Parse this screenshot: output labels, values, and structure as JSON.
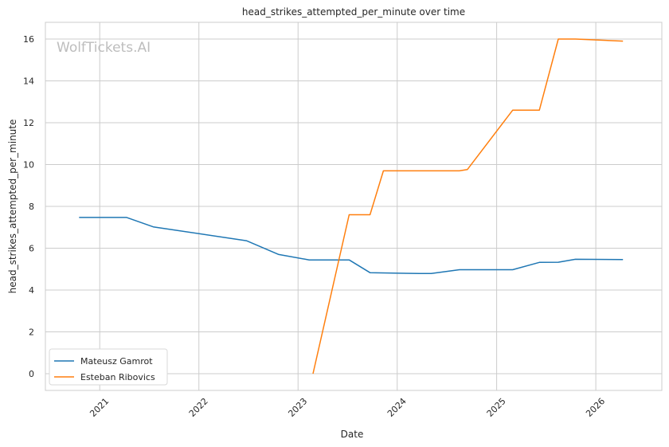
{
  "chart_data": {
    "type": "line",
    "title": "head_strikes_attempted_per_minute over time",
    "xlabel": "Date",
    "ylabel": "head_strikes_attempted_per_minute",
    "watermark": "WolfTickets.AI",
    "xlim": [
      "2020-06-15",
      "2026-09-01"
    ],
    "ylim": [
      -0.8,
      16.8
    ],
    "x_ticks": [
      "2021",
      "2022",
      "2023",
      "2024",
      "2025",
      "2026"
    ],
    "y_ticks": [
      0,
      2,
      4,
      6,
      8,
      10,
      12,
      14,
      16
    ],
    "grid": true,
    "legend_position": "lower-left",
    "series": [
      {
        "name": "Mateusz Gamrot",
        "color": "#1f77b4",
        "points": [
          [
            "2020-10-17",
            7.47
          ],
          [
            "2021-04-10",
            7.47
          ],
          [
            "2021-07-17",
            7.02
          ],
          [
            "2022-06-25",
            6.36
          ],
          [
            "2022-10-22",
            5.7
          ],
          [
            "2023-02-11",
            5.44
          ],
          [
            "2023-07-08",
            5.44
          ],
          [
            "2023-09-23",
            4.83
          ],
          [
            "2024-03-23",
            4.79
          ],
          [
            "2024-05-05",
            4.79
          ],
          [
            "2024-08-17",
            4.97
          ],
          [
            "2025-03-01",
            4.97
          ],
          [
            "2025-06-07",
            5.32
          ],
          [
            "2025-08-16",
            5.33
          ],
          [
            "2025-10-18",
            5.47
          ],
          [
            "2026-04-11",
            5.46
          ]
        ]
      },
      {
        "name": "Esteban Ribovics",
        "color": "#ff7f0e",
        "points": [
          [
            "2023-02-25",
            0.0
          ],
          [
            "2023-07-08",
            7.6
          ],
          [
            "2023-09-23",
            7.6
          ],
          [
            "2023-11-11",
            9.7
          ],
          [
            "2024-08-17",
            9.7
          ],
          [
            "2024-09-15",
            9.76
          ],
          [
            "2025-03-01",
            12.6
          ],
          [
            "2025-06-07",
            12.6
          ],
          [
            "2025-08-16",
            16.0
          ],
          [
            "2025-10-18",
            16.0
          ],
          [
            "2026-04-11",
            15.9
          ]
        ]
      }
    ]
  }
}
